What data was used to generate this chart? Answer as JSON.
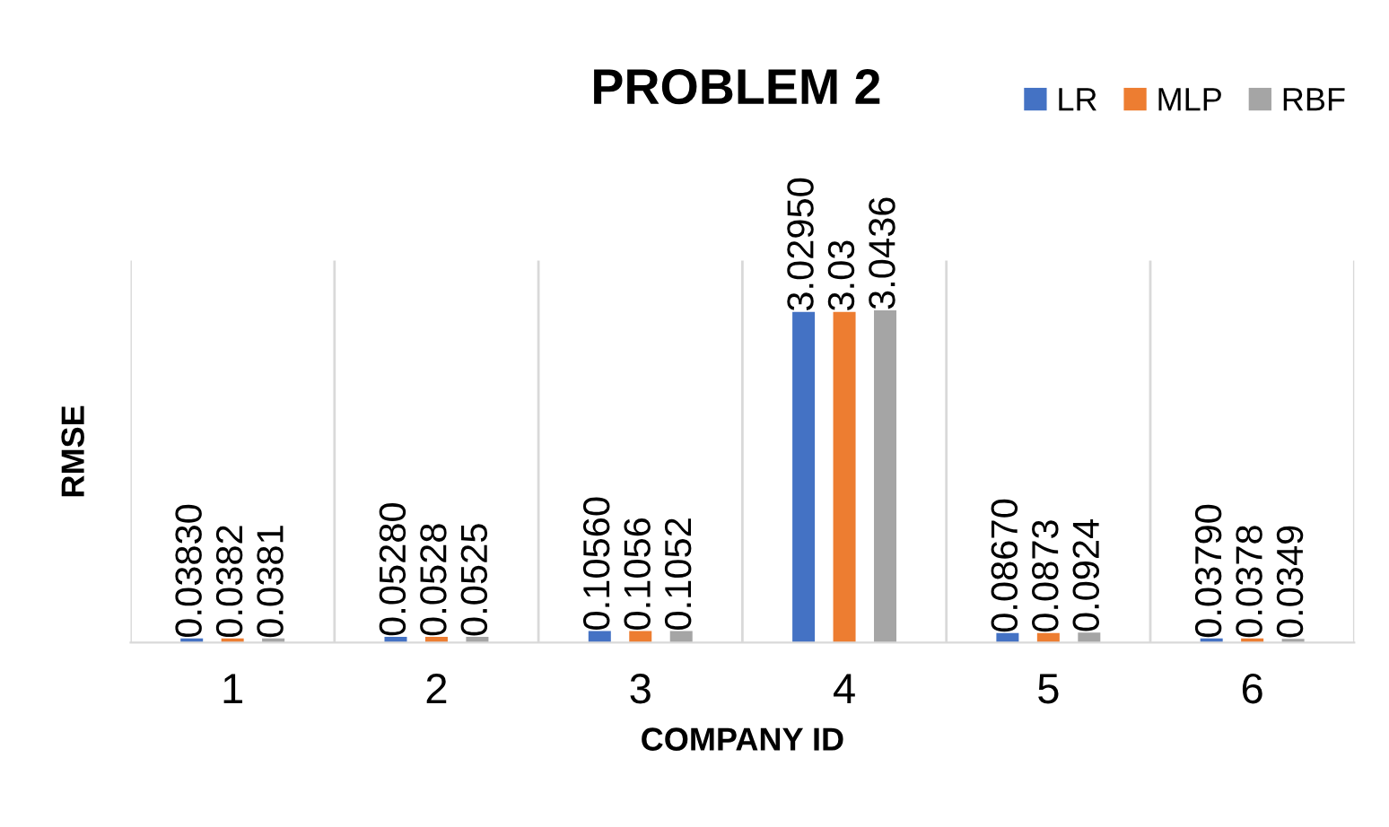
{
  "chart_data": {
    "type": "bar",
    "title": "PROBLEM 2",
    "xlabel": "COMPANY ID",
    "ylabel": "RMSE",
    "categories": [
      "1",
      "2",
      "3",
      "4",
      "5",
      "6"
    ],
    "series": [
      {
        "name": "LR",
        "color": "#4472c4",
        "values": [
          0.0383,
          0.0528,
          0.1056,
          3.0295,
          0.0867,
          0.0379
        ],
        "value_labels": [
          "0.03830",
          "0.05280",
          "0.10560",
          "3.02950",
          "0.08670",
          "0.03790"
        ]
      },
      {
        "name": "MLP",
        "color": "#ed7d31",
        "values": [
          0.0382,
          0.0528,
          0.1056,
          3.03,
          0.0873,
          0.0378
        ],
        "value_labels": [
          "0.0382",
          "0.0528",
          "0.1056",
          "3.03",
          "0.0873",
          "0.0378"
        ]
      },
      {
        "name": "RBF",
        "color": "#a5a5a5",
        "values": [
          0.0381,
          0.0525,
          0.1052,
          3.0436,
          0.0924,
          0.0349
        ],
        "value_labels": [
          "0.0381",
          "0.0525",
          "0.1052",
          "3.0436",
          "0.0924",
          "0.0349"
        ]
      }
    ],
    "grid": "x",
    "legend": "top right",
    "tick_labels": "x"
  }
}
